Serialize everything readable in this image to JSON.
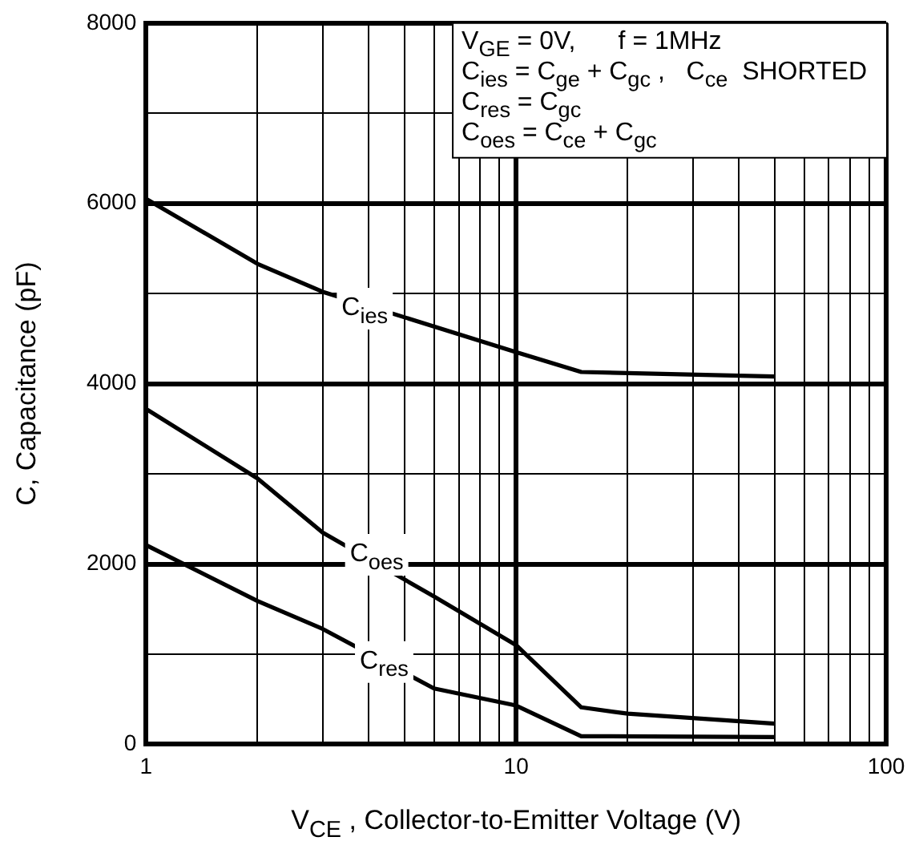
{
  "chart_data": {
    "type": "line",
    "xlabel": "V$_{CE}$ , Collector-to-Emitter Voltage (V)",
    "ylabel": "C, Capacitance (pF)",
    "log": "x",
    "grid": true,
    "legend": false,
    "marker": "none",
    "line_style": "solid",
    "xlim": [
      1,
      100
    ],
    "ylim": [
      0,
      8000
    ],
    "xticks": [
      1,
      {
        "value": 2,
        "label": null
      },
      {
        "value": 3,
        "label": null
      },
      {
        "value": 4,
        "label": null
      },
      {
        "value": 5,
        "label": null
      },
      {
        "value": 6,
        "label": null
      },
      {
        "value": 7,
        "label": null
      },
      {
        "value": 8,
        "label": null
      },
      {
        "value": 9,
        "label": null
      },
      10,
      {
        "value": 20,
        "label": null
      },
      {
        "value": 30,
        "label": null
      },
      {
        "value": 40,
        "label": null
      },
      {
        "value": 50,
        "label": null
      },
      {
        "value": 60,
        "label": null
      },
      {
        "value": 70,
        "label": null
      },
      {
        "value": 80,
        "label": null
      },
      {
        "value": 90,
        "label": null
      },
      100
    ],
    "yticks": [
      0,
      {
        "value": 1000,
        "label": null
      },
      2000,
      {
        "value": 3000,
        "label": null
      },
      4000,
      {
        "value": 5000,
        "label": null
      },
      6000,
      {
        "value": 7000,
        "label": null
      },
      8000
    ],
    "series": [
      {
        "color": "#000000",
        "x": [
          1,
          2,
          3,
          10,
          15,
          50
        ],
        "values": [
          6050,
          5330,
          5020,
          4350,
          4130,
          4080
        ]
      },
      {
        "color": "#000000",
        "x": [
          1,
          2,
          3,
          6,
          10,
          15,
          20,
          50
        ],
        "values": [
          3720,
          2950,
          2350,
          1640,
          1100,
          410,
          340,
          230
        ]
      },
      {
        "color": "#000000",
        "x": [
          1,
          2,
          3,
          6,
          10,
          15,
          50
        ],
        "values": [
          2210,
          1590,
          1280,
          620,
          430,
          90,
          80
        ]
      }
    ],
    "annotations": [
      "V$_{GE}$ = 0V,      f = 1MHz",
      "C$_{ies}$ = C$_{ge}$ + C$_{gc}$ ,   C$_{ce}$  SHORTED",
      "C$_{res}$ = C$_{gc}$",
      "C$_{oes}$ = C$_{ce}$ + C$_{gc}$",
      {
        "text": "C$_{ies}$",
        "x": 3.9,
        "y": 4850
      },
      {
        "text": "C$_{oes}$",
        "x": 4.2,
        "y": 2120
      },
      {
        "text": "C$_{res}$",
        "x": 4.4,
        "y": 930
      }
    ]
  }
}
